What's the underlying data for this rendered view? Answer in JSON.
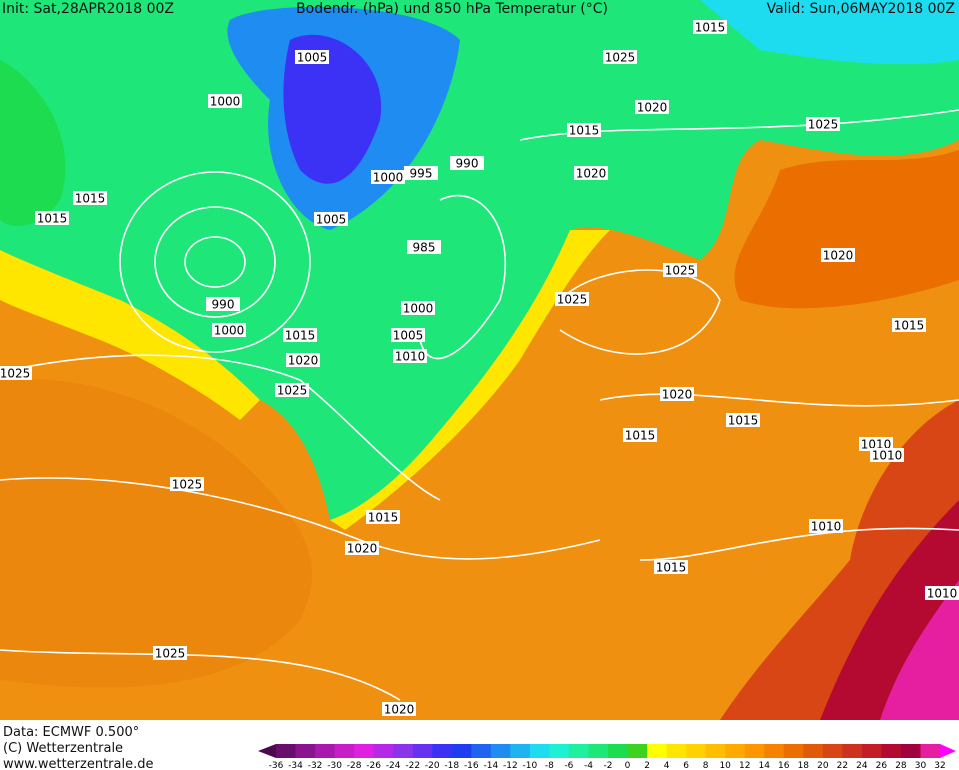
{
  "header": {
    "init": "Init: Sat,28APR2018 00Z",
    "title": "Bodendr. (hPa) und 850 hPa Temperatur (°C)",
    "valid": "Valid: Sun,06MAY2018 00Z"
  },
  "footer": {
    "data": "Data: ECMWF  0.500°",
    "copyright": "(C) Wetterzentrale",
    "url": "www.wetterzentrale.de"
  },
  "isobar_labels": [
    "1015",
    "1025",
    "1020",
    "1015",
    "1025",
    "1000",
    "1005",
    "990",
    "995",
    "1000",
    "1020",
    "1015",
    "1015",
    "1005",
    "985",
    "1025",
    "1020",
    "1025",
    "990",
    "1000",
    "1015",
    "1000",
    "1005",
    "1010",
    "1020",
    "1025",
    "1025",
    "1015",
    "1020",
    "1015",
    "1015",
    "1010",
    "1010",
    "1025",
    "1015",
    "1010",
    "1020",
    "1015",
    "1025",
    "1020",
    "1010"
  ],
  "colorbar": {
    "labels": [
      -36,
      -34,
      -32,
      -30,
      -28,
      -26,
      -24,
      -22,
      -20,
      -18,
      -16,
      -14,
      -12,
      -10,
      -8,
      -6,
      -4,
      -2,
      0,
      2,
      4,
      6,
      8,
      10,
      12,
      14,
      16,
      18,
      20,
      22,
      24,
      26,
      28,
      30,
      32
    ],
    "colors": [
      "#4b0a4b",
      "#6a0e6e",
      "#8a148e",
      "#a81aae",
      "#c81ec8",
      "#e020e0",
      "#b428e6",
      "#8c32eb",
      "#6432f0",
      "#3c32f5",
      "#1e3cf0",
      "#1e64f0",
      "#1e8cf0",
      "#1eb4f0",
      "#1edcf0",
      "#1ef0d2",
      "#1ef0a0",
      "#1ee678",
      "#1edc50",
      "#3cd21e",
      "#ffff00",
      "#ffe600",
      "#ffd200",
      "#ffbe00",
      "#ffaa00",
      "#ff9600",
      "#f58200",
      "#eb6e00",
      "#e15a0a",
      "#d74614",
      "#cd321e",
      "#c31e28",
      "#b40a32",
      "#a0003c",
      "#e61ea0",
      "#ff00ff"
    ]
  }
}
